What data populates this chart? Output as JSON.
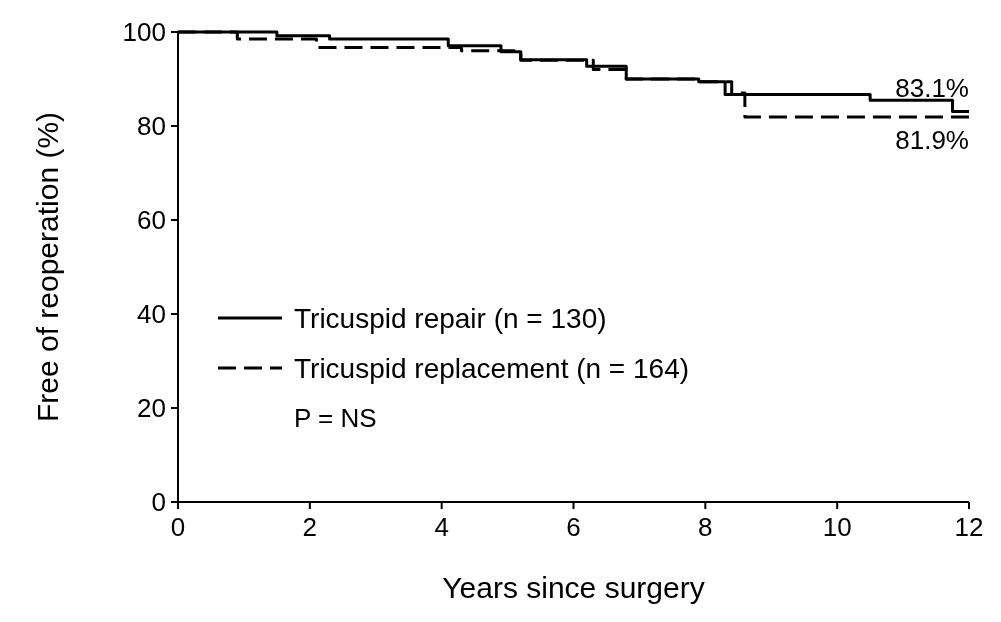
{
  "chart_data": {
    "type": "step",
    "xlabel": "Years since surgery",
    "ylabel": "Free of reoperation (%)",
    "xlim": [
      0,
      12
    ],
    "ylim": [
      0,
      100
    ],
    "xticks": [
      0,
      2,
      4,
      6,
      8,
      10,
      12
    ],
    "yticks": [
      0,
      20,
      40,
      60,
      80,
      100
    ],
    "grid": false,
    "legend": "left",
    "marker": "none",
    "series": [
      {
        "name": "Tricuspid repair (n = 130)",
        "color": "#000000",
        "line_style": "solid",
        "x": [
          0,
          1.5,
          2.3,
          4.1,
          4.9,
          5.2,
          6.2,
          6.8,
          7.9,
          8.3,
          10.5,
          11.75,
          12
        ],
        "values": [
          100,
          99.2,
          98.5,
          97.1,
          95.8,
          94.1,
          92.7,
          90,
          89.4,
          86.7,
          85.5,
          83.1,
          83.1
        ]
      },
      {
        "name": "Tricuspid replacement (n = 164)",
        "color": "#000000",
        "line_style": "dashed",
        "x": [
          0,
          0.9,
          2.1,
          4.3,
          5.2,
          6.3,
          6.8,
          7.9,
          8.4,
          8.6,
          12
        ],
        "values": [
          100,
          98.5,
          96.7,
          96,
          94,
          92,
          90,
          89.4,
          87,
          81.9,
          81.9
        ]
      }
    ],
    "annotations": [
      {
        "text": "83.1%",
        "x": 12,
        "y": 83.1
      },
      {
        "text": "81.9%",
        "x": 12,
        "y": 81.9
      },
      "P = NS"
    ]
  }
}
